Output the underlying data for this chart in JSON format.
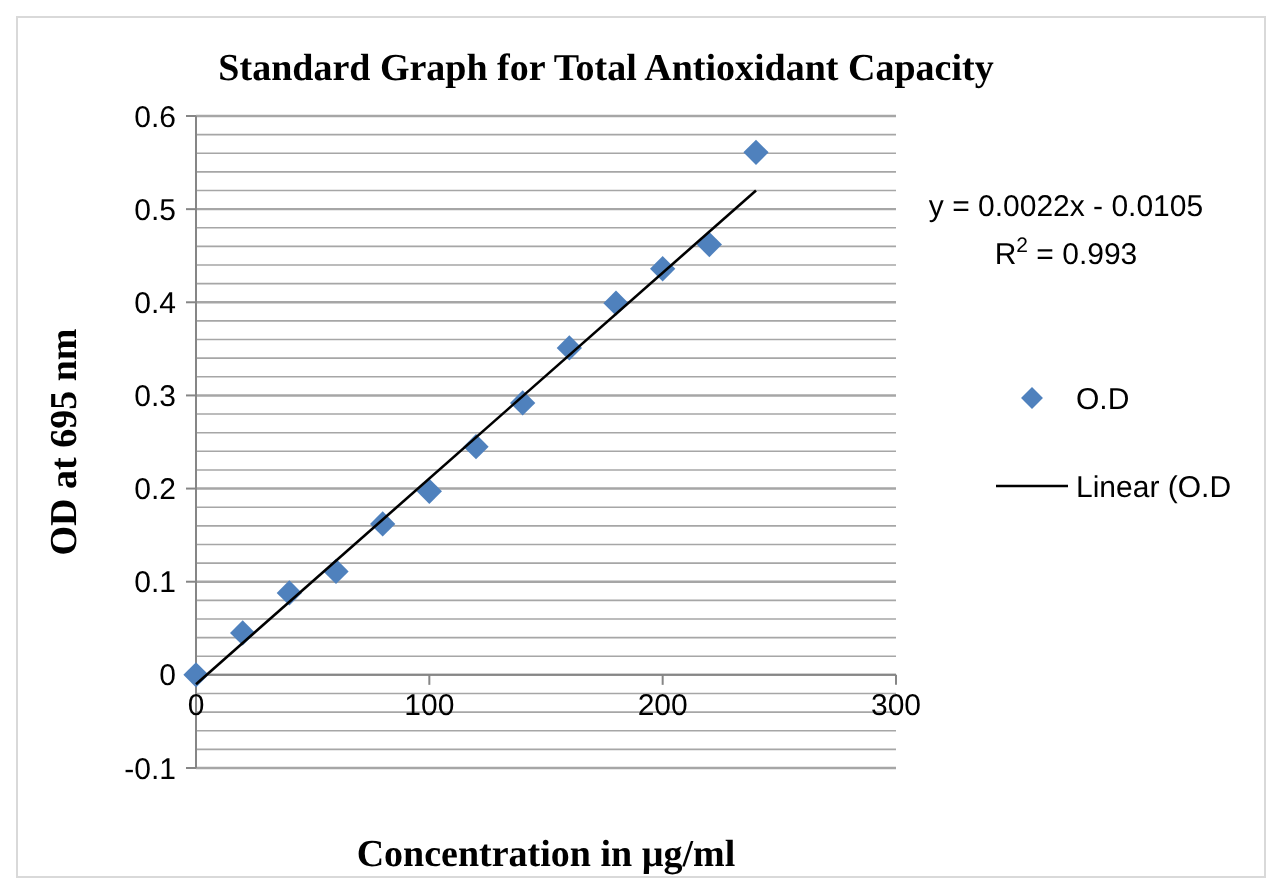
{
  "chart_data": {
    "type": "scatter",
    "title": "Standard Graph for Total Antioxidant Capacity",
    "xlabel": "Concentration in µg/ml",
    "ylabel": "OD at 695 nm",
    "xlim": [
      0,
      300
    ],
    "xticks": [
      0,
      100,
      200,
      300
    ],
    "ylim": [
      -0.1,
      0.6
    ],
    "yticks": [
      -0.1,
      {
        "value": -0.08,
        "label": null
      },
      {
        "value": -0.06,
        "label": null
      },
      {
        "value": -0.04,
        "label": null
      },
      {
        "value": -0.02,
        "label": null
      },
      0,
      {
        "value": 0.02,
        "label": null
      },
      {
        "value": 0.04,
        "label": null
      },
      {
        "value": 0.06,
        "label": null
      },
      {
        "value": 0.08,
        "label": null
      },
      0.1,
      {
        "value": 0.12,
        "label": null
      },
      {
        "value": 0.14,
        "label": null
      },
      {
        "value": 0.16,
        "label": null
      },
      {
        "value": 0.18,
        "label": null
      },
      0.2,
      {
        "value": 0.22,
        "label": null
      },
      {
        "value": 0.24,
        "label": null
      },
      {
        "value": 0.26,
        "label": null
      },
      {
        "value": 0.28,
        "label": null
      },
      0.3,
      {
        "value": 0.32,
        "label": null
      },
      {
        "value": 0.34,
        "label": null
      },
      {
        "value": 0.36,
        "label": null
      },
      {
        "value": 0.38,
        "label": null
      },
      0.4,
      {
        "value": 0.42,
        "label": null
      },
      {
        "value": 0.44,
        "label": null
      },
      {
        "value": 0.46,
        "label": null
      },
      {
        "value": 0.48,
        "label": null
      },
      0.5,
      {
        "value": 0.52,
        "label": null
      },
      {
        "value": 0.54,
        "label": null
      },
      {
        "value": 0.56,
        "label": null
      },
      {
        "value": 0.58,
        "label": null
      },
      0.6
    ],
    "grid": "y",
    "legend": "right",
    "annotations": [
      "y = 0.0022x - 0.0105",
      "R$^{2}$ = 0.993"
    ],
    "series": [
      {
        "name": "O.D",
        "marker": "diamond",
        "color": "#4f81bd",
        "x": [
          0,
          20,
          40,
          60,
          80,
          100,
          120,
          140,
          160,
          180,
          200,
          220,
          240
        ],
        "values": [
          0,
          0.045,
          0.088,
          0.111,
          0.162,
          0.197,
          0.245,
          0.292,
          0.351,
          0.399,
          0.436,
          0.462,
          0.561
        ]
      },
      {
        "name": "Linear (O.D",
        "type": "line",
        "color": "#000000",
        "line_style": "solid",
        "marker": "none",
        "x": [
          0,
          240
        ],
        "values": [
          -0.01,
          0.52
        ]
      }
    ]
  }
}
